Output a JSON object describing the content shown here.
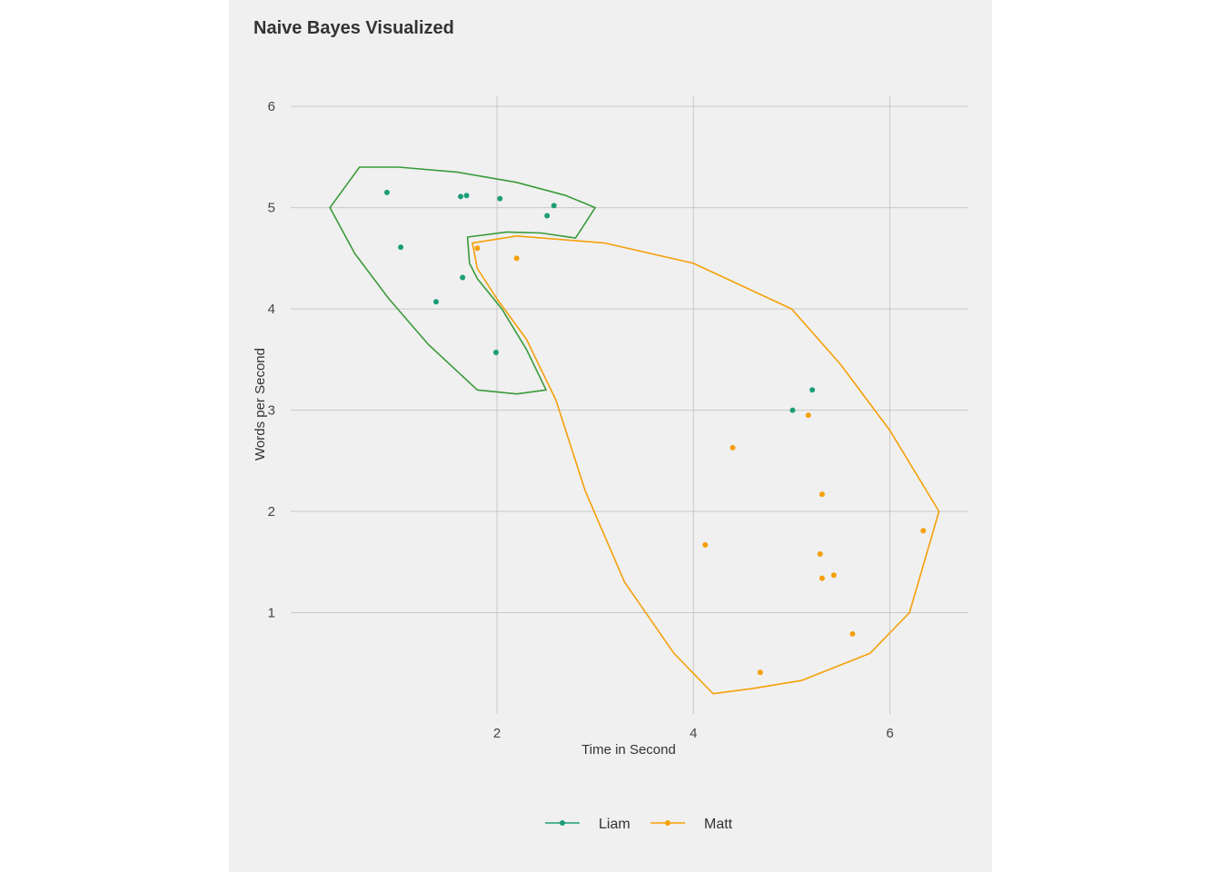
{
  "chart_data": {
    "type": "scatter",
    "title": "Naive Bayes Visualized",
    "xlabel": "Time in Second",
    "ylabel": "Words per Second",
    "xlim": [
      -0.1,
      6.8
    ],
    "ylim": [
      0,
      6.1
    ],
    "x_ticks": [
      2,
      4,
      6
    ],
    "y_ticks": [
      1,
      2,
      3,
      4,
      5,
      6
    ],
    "grid": true,
    "legend_position": "bottom",
    "series": [
      {
        "name": "Liam",
        "color": "#1b9e77",
        "outline_color": "#3a9a3a",
        "points": [
          {
            "x": 0.88,
            "y": 5.15
          },
          {
            "x": 1.02,
            "y": 4.61
          },
          {
            "x": 1.38,
            "y": 4.07
          },
          {
            "x": 1.63,
            "y": 5.11
          },
          {
            "x": 1.69,
            "y": 5.12
          },
          {
            "x": 1.65,
            "y": 4.31
          },
          {
            "x": 2.03,
            "y": 5.09
          },
          {
            "x": 1.99,
            "y": 3.57
          },
          {
            "x": 2.51,
            "y": 4.92
          },
          {
            "x": 2.58,
            "y": 5.02
          },
          {
            "x": 5.01,
            "y": 3.0
          },
          {
            "x": 5.21,
            "y": 3.2
          }
        ],
        "region": [
          [
            0.3,
            5.0
          ],
          [
            0.6,
            5.4
          ],
          [
            1.0,
            5.4
          ],
          [
            1.6,
            5.35
          ],
          [
            2.2,
            5.25
          ],
          [
            2.7,
            5.12
          ],
          [
            3.0,
            5.0
          ],
          [
            2.8,
            4.7
          ],
          [
            2.45,
            4.75
          ],
          [
            2.1,
            4.76
          ],
          [
            1.7,
            4.71
          ],
          [
            1.72,
            4.45
          ],
          [
            1.8,
            4.3
          ],
          [
            2.05,
            4.0
          ],
          [
            2.3,
            3.6
          ],
          [
            2.5,
            3.2
          ],
          [
            2.2,
            3.16
          ],
          [
            1.8,
            3.2
          ],
          [
            1.3,
            3.65
          ],
          [
            0.9,
            4.1
          ],
          [
            0.55,
            4.55
          ],
          [
            0.3,
            5.0
          ]
        ]
      },
      {
        "name": "Matt",
        "color": "#f5a00a",
        "outline_color": "#f5a00a",
        "points": [
          {
            "x": 1.8,
            "y": 4.6
          },
          {
            "x": 2.2,
            "y": 4.5
          },
          {
            "x": 4.4,
            "y": 2.63
          },
          {
            "x": 4.12,
            "y": 1.67
          },
          {
            "x": 4.68,
            "y": 0.41
          },
          {
            "x": 5.17,
            "y": 2.95
          },
          {
            "x": 5.31,
            "y": 2.17
          },
          {
            "x": 5.29,
            "y": 1.58
          },
          {
            "x": 5.31,
            "y": 1.34
          },
          {
            "x": 5.43,
            "y": 1.37
          },
          {
            "x": 5.62,
            "y": 0.79
          },
          {
            "x": 6.34,
            "y": 1.81
          }
        ],
        "region": [
          [
            1.75,
            4.65
          ],
          [
            2.2,
            4.72
          ],
          [
            3.1,
            4.65
          ],
          [
            4.0,
            4.45
          ],
          [
            5.0,
            4.0
          ],
          [
            5.5,
            3.45
          ],
          [
            6.0,
            2.8
          ],
          [
            6.5,
            2.0
          ],
          [
            6.2,
            1.0
          ],
          [
            5.8,
            0.6
          ],
          [
            5.1,
            0.33
          ],
          [
            4.6,
            0.25
          ],
          [
            4.2,
            0.2
          ],
          [
            3.8,
            0.6
          ],
          [
            3.3,
            1.3
          ],
          [
            2.9,
            2.2
          ],
          [
            2.6,
            3.1
          ],
          [
            2.3,
            3.7
          ],
          [
            2.0,
            4.1
          ],
          [
            1.8,
            4.4
          ],
          [
            1.75,
            4.65
          ]
        ]
      }
    ]
  }
}
